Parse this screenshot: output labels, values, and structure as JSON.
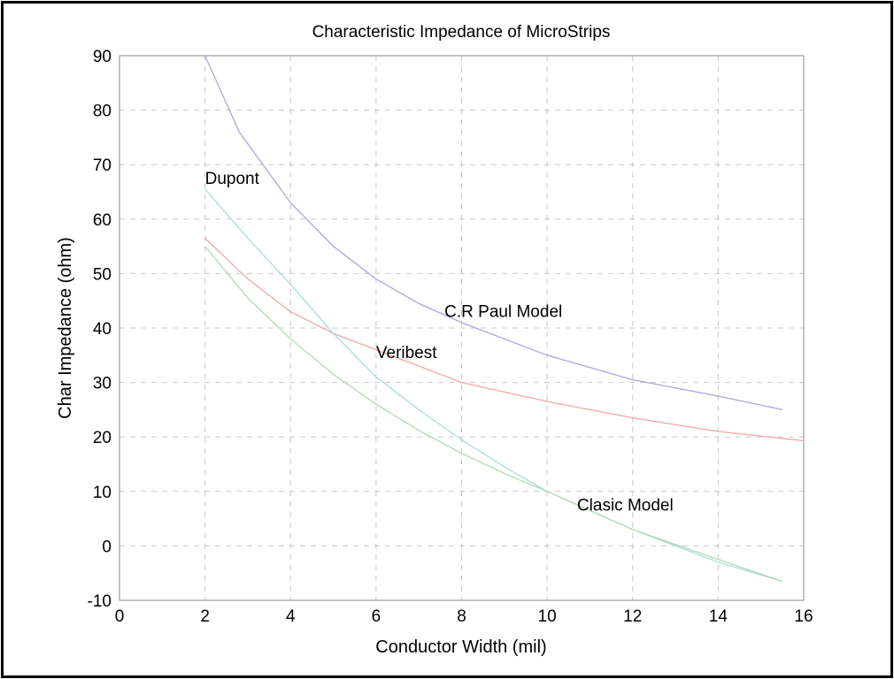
{
  "chart_data": {
    "type": "line",
    "title": "Characteristic Impedance of MicroStrips",
    "xlabel": "Conductor Width (mil)",
    "ylabel": "Char Impedance (ohm)",
    "xlim": [
      0,
      16
    ],
    "ylim": [
      -10,
      90
    ],
    "xticks": [
      0,
      2,
      4,
      6,
      8,
      10,
      12,
      14,
      16
    ],
    "yticks": [
      -10,
      0,
      10,
      20,
      30,
      40,
      50,
      60,
      70,
      80,
      90
    ],
    "grid": true,
    "series": [
      {
        "name": "C.R Paul Model",
        "color": "#a8a8dc",
        "x": [
          2,
          2.8,
          4,
          5,
          6,
          7,
          8,
          10,
          12,
          14,
          15.5
        ],
        "y": [
          90,
          76,
          63,
          55,
          49,
          44.5,
          41,
          35,
          30.5,
          27.5,
          25
        ]
      },
      {
        "name": "Veribest",
        "color": "#f0a8a8",
        "x": [
          2,
          3,
          4,
          5,
          6,
          8,
          10,
          12,
          14,
          16
        ],
        "y": [
          56.5,
          49,
          43,
          39,
          36,
          30,
          26.5,
          23.5,
          21,
          19.3
        ]
      },
      {
        "name": "Dupont",
        "color": "#a8dcdc",
        "x": [
          2,
          3,
          4,
          5,
          6,
          7,
          8,
          9,
          10,
          12,
          13,
          14,
          15.5
        ],
        "y": [
          65.5,
          56.5,
          48,
          39,
          31,
          25,
          19.5,
          14.5,
          10,
          3,
          0,
          -3,
          -6.5
        ]
      },
      {
        "name": "Clasic Model",
        "color": "#b4d8b4",
        "x": [
          2,
          3,
          4,
          5,
          6,
          7,
          8,
          9,
          10,
          12,
          14,
          15.5
        ],
        "y": [
          55,
          45.5,
          38,
          31.5,
          26,
          21.2,
          17,
          13.3,
          10,
          3,
          -2.5,
          -6.5
        ]
      }
    ],
    "annotations": [
      {
        "text": "Dupont",
        "x": 2,
        "y": 66.5
      },
      {
        "text": "C.R Paul Model",
        "x": 7.6,
        "y": 42
      },
      {
        "text": "Veribest",
        "x": 6,
        "y": 34.5
      },
      {
        "text": "Clasic Model",
        "x": 10.7,
        "y": 6.5
      }
    ]
  }
}
